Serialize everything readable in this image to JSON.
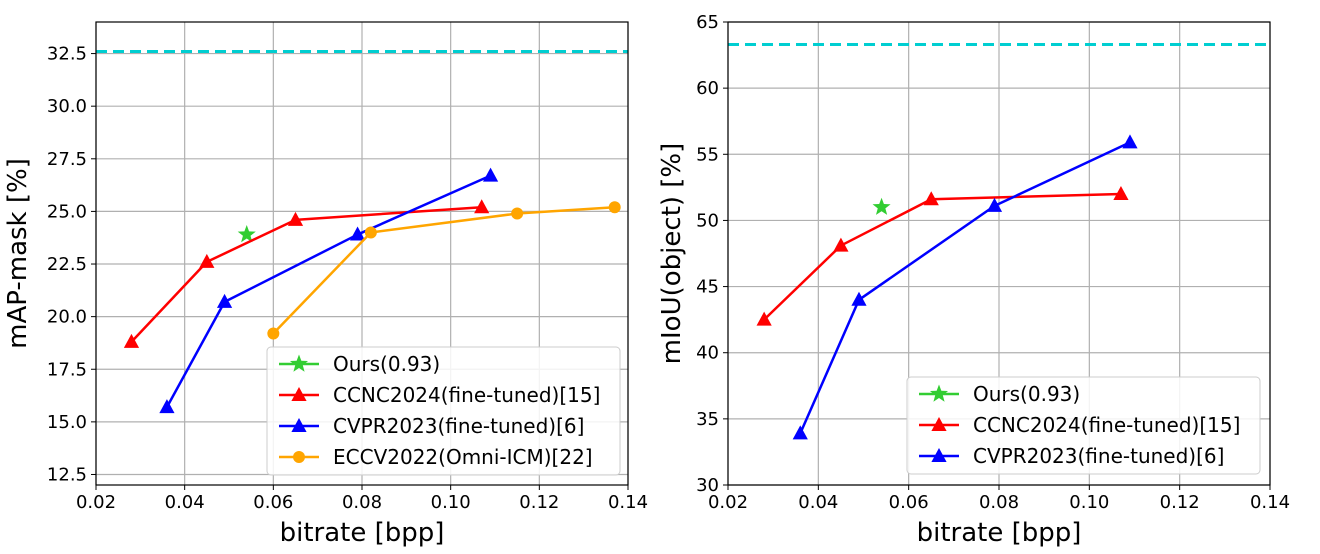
{
  "chart_data": [
    {
      "type": "line",
      "title": "",
      "xlabel": "bitrate [bpp]",
      "ylabel": "mAP-mask [%]",
      "xlim": [
        0.02,
        0.14
      ],
      "ylim": [
        12.0,
        34.0
      ],
      "xticks": [
        0.02,
        0.04,
        0.06,
        0.08,
        0.1,
        0.12,
        0.14
      ],
      "xtick_labels": [
        "0.02",
        "0.04",
        "0.06",
        "0.08",
        "0.10",
        "0.12",
        "0.14"
      ],
      "yticks": [
        12.5,
        15.0,
        17.5,
        20.0,
        22.5,
        25.0,
        27.5,
        30.0,
        32.5
      ],
      "ytick_labels": [
        "12.5",
        "15.0",
        "17.5",
        "20.0",
        "22.5",
        "25.0",
        "27.5",
        "30.0",
        "32.5"
      ],
      "grid": true,
      "legend_position": "bottom-right",
      "reference_line": {
        "y": 32.6,
        "color": "#00CED1",
        "style": "dashed"
      },
      "series": [
        {
          "name": "Ours(0.93)",
          "color": "#32CD32",
          "marker": "star",
          "x": [
            0.054
          ],
          "y": [
            23.9
          ]
        },
        {
          "name": "CCNC2024(fine-tuned)[15]",
          "color": "#FF0000",
          "marker": "triangle",
          "x": [
            0.028,
            0.045,
            0.065,
            0.107
          ],
          "y": [
            18.8,
            22.6,
            24.6,
            25.2
          ]
        },
        {
          "name": "CVPR2023(fine-tuned)[6]",
          "color": "#0000FF",
          "marker": "triangle",
          "x": [
            0.036,
            0.049,
            0.079,
            0.109
          ],
          "y": [
            15.7,
            20.7,
            23.9,
            26.7
          ]
        },
        {
          "name": "ECCV2022(Omni-ICM)[22]",
          "color": "#FFA500",
          "marker": "circle",
          "x": [
            0.06,
            0.082,
            0.115,
            0.137
          ],
          "y": [
            19.2,
            24.0,
            24.9,
            25.2
          ]
        }
      ]
    },
    {
      "type": "line",
      "title": "",
      "xlabel": "bitrate [bpp]",
      "ylabel": "mIoU(object) [%]",
      "xlim": [
        0.02,
        0.14
      ],
      "ylim": [
        30,
        65
      ],
      "xticks": [
        0.02,
        0.04,
        0.06,
        0.08,
        0.1,
        0.12,
        0.14
      ],
      "xtick_labels": [
        "0.02",
        "0.04",
        "0.06",
        "0.08",
        "0.10",
        "0.12",
        "0.14"
      ],
      "yticks": [
        30,
        35,
        40,
        45,
        50,
        55,
        60,
        65
      ],
      "ytick_labels": [
        "30",
        "35",
        "40",
        "45",
        "50",
        "55",
        "60",
        "65"
      ],
      "grid": true,
      "legend_position": "bottom-right",
      "reference_line": {
        "y": 63.3,
        "color": "#00CED1",
        "style": "dashed"
      },
      "series": [
        {
          "name": "Ours(0.93)",
          "color": "#32CD32",
          "marker": "star",
          "x": [
            0.054
          ],
          "y": [
            51.0
          ]
        },
        {
          "name": "CCNC2024(fine-tuned)[15]",
          "color": "#FF0000",
          "marker": "triangle",
          "x": [
            0.028,
            0.045,
            0.065,
            0.107
          ],
          "y": [
            42.5,
            48.1,
            51.6,
            52.0
          ]
        },
        {
          "name": "CVPR2023(fine-tuned)[6]",
          "color": "#0000FF",
          "marker": "triangle",
          "x": [
            0.036,
            0.049,
            0.079,
            0.109
          ],
          "y": [
            33.9,
            44.0,
            51.1,
            55.9
          ]
        }
      ]
    }
  ]
}
